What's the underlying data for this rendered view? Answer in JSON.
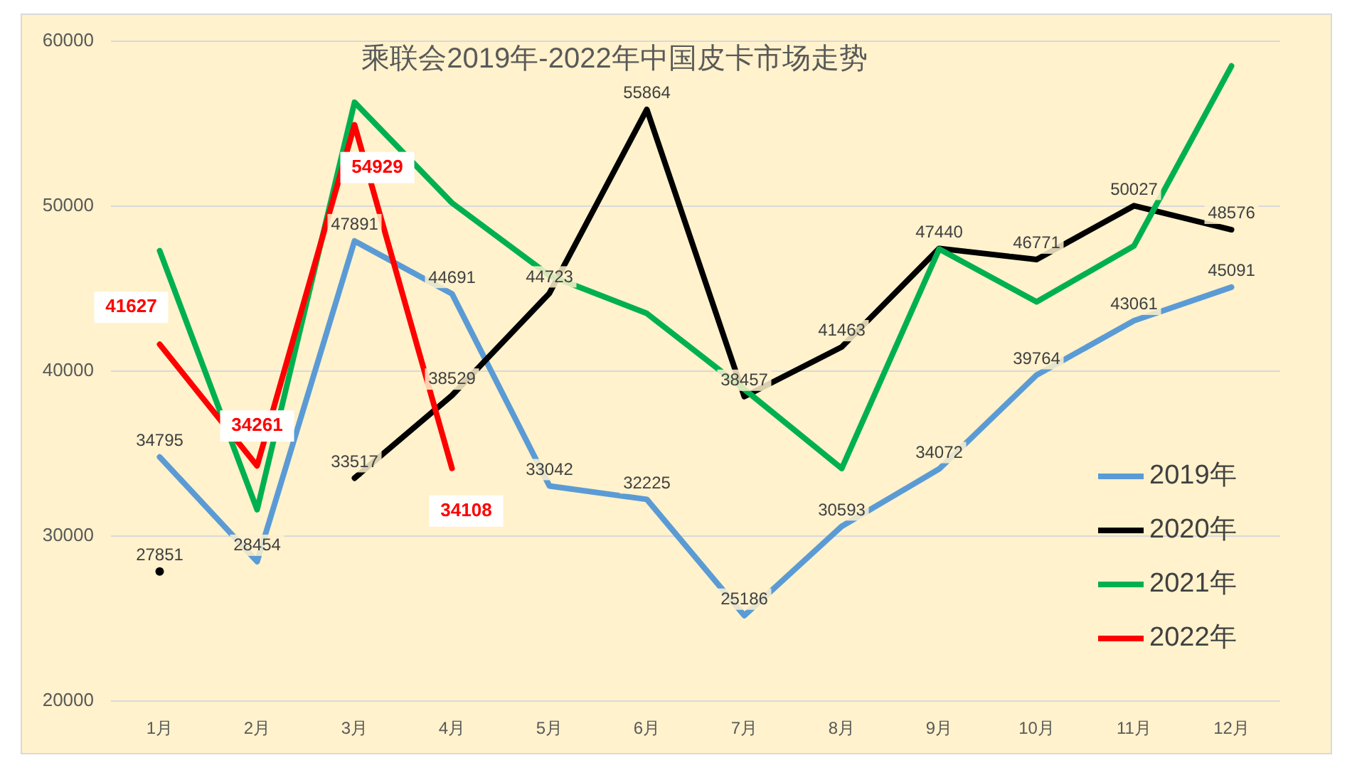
{
  "chart_data": {
    "type": "line",
    "title": "乘联会2019年-2022年中国皮卡市场走势",
    "categories": [
      "1月",
      "2月",
      "3月",
      "4月",
      "5月",
      "6月",
      "7月",
      "8月",
      "9月",
      "10月",
      "11月",
      "12月"
    ],
    "ylim": [
      20000,
      60000
    ],
    "yticks": [
      20000,
      30000,
      40000,
      50000,
      60000
    ],
    "grid": "y",
    "legend": "right",
    "marker": "none",
    "line_style": "solid",
    "series": [
      {
        "name": "2019年",
        "color": "#5b9bd5",
        "values": [
          34795,
          28454,
          47891,
          44691,
          33042,
          32225,
          25186,
          30593,
          34072,
          39764,
          43061,
          45091
        ],
        "value_labels": [
          "34795",
          "28454",
          "47891",
          "44691",
          "33042",
          "32225",
          "25186",
          "30593",
          "34072",
          "39764",
          "43061",
          "45091"
        ]
      },
      {
        "name": "2020年",
        "color": "#000000",
        "values": [
          27851,
          null,
          33517,
          38529,
          44723,
          55864,
          38457,
          41463,
          47440,
          46771,
          50027,
          48576
        ],
        "value_labels": [
          "27851",
          null,
          "33517",
          "38529",
          "44723",
          "55864",
          "38457",
          "41463",
          "47440",
          "46771",
          "50027",
          "48576"
        ]
      },
      {
        "name": "2021年",
        "color": "#00b050",
        "values": [
          47300,
          31600,
          56300,
          50200,
          45800,
          43500,
          38900,
          34100,
          47400,
          44200,
          47600,
          58500
        ]
      },
      {
        "name": "2022年",
        "color": "#ff0000",
        "values": [
          41627,
          34261,
          54929,
          34108,
          null,
          null,
          null,
          null,
          null,
          null,
          null,
          null
        ],
        "value_labels": [
          "41627",
          "34261",
          "54929",
          "34108",
          null,
          null,
          null,
          null,
          null,
          null,
          null,
          null
        ]
      }
    ]
  }
}
